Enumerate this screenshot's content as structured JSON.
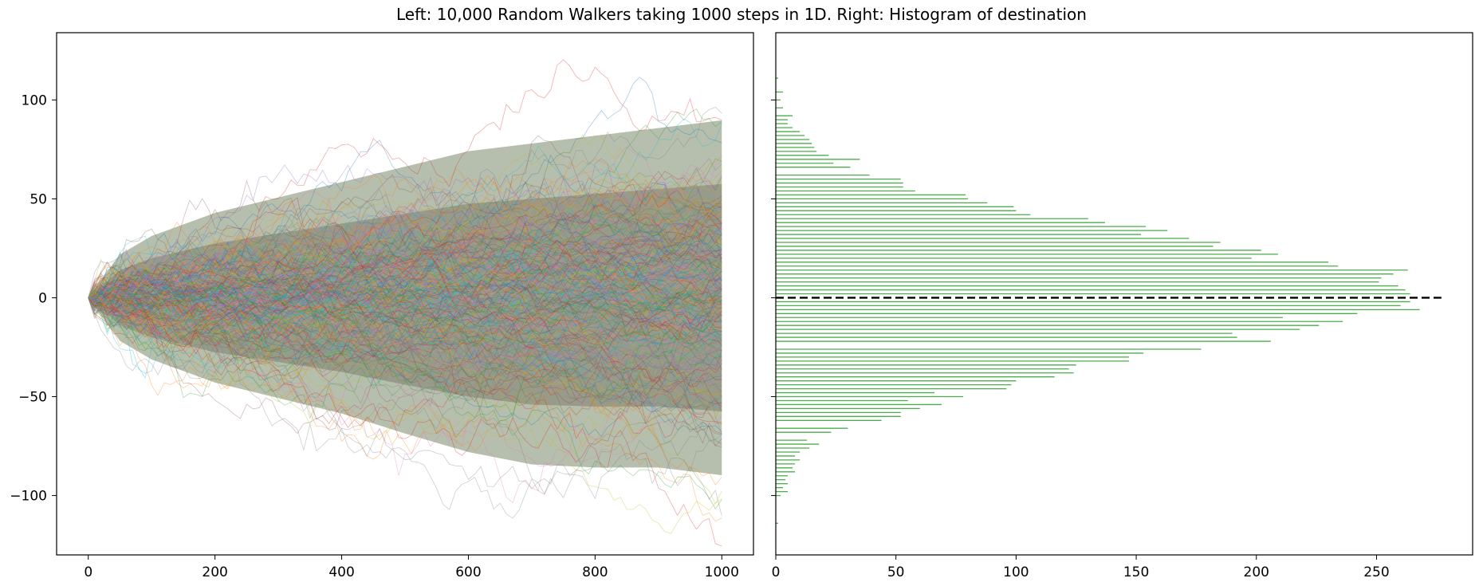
{
  "figure_title": "Left: 10,000 Random Walkers taking 1000 steps in 1D.  Right: Histogram of destination",
  "chart_data": [
    {
      "type": "line",
      "title": "",
      "xlabel": "",
      "ylabel": "",
      "description_series": "10,000 random walk trajectories",
      "steps": 1000,
      "walkers": 10000,
      "xlim": [
        -50,
        1050
      ],
      "ylim": [
        -130,
        134
      ],
      "x_ticks": [
        0,
        200,
        400,
        600,
        800,
        1000
      ],
      "y_ticks": [
        -100,
        -50,
        0,
        50,
        100
      ],
      "envelope": {
        "x": [
          0,
          50,
          100,
          200,
          300,
          400,
          500,
          600,
          700,
          800,
          900,
          1000
        ],
        "upper": [
          0,
          28,
          40,
          55,
          65,
          75,
          85,
          95,
          100,
          105,
          110,
          115
        ],
        "lower": [
          0,
          -28,
          -40,
          -55,
          -65,
          -75,
          -88,
          -100,
          -108,
          -110,
          -110,
          -115
        ]
      },
      "colors": [
        "#1f77b4",
        "#ff7f0e",
        "#2ca02c",
        "#d62728",
        "#9467bd",
        "#8c564b",
        "#e377c2",
        "#7f7f7f",
        "#bcbd22",
        "#17becf"
      ]
    },
    {
      "type": "bar",
      "orientation": "horizontal",
      "title": "",
      "xlabel": "",
      "ylabel": "",
      "xlim": [
        0,
        290
      ],
      "ylim": [
        -130,
        134
      ],
      "x_ticks": [
        0,
        50,
        100,
        150,
        200,
        250
      ],
      "y_ticks": [
        -100,
        -50,
        0,
        50,
        100
      ],
      "bar_color": "#2ca02c",
      "mean_line": {
        "y": 0,
        "x_end": 277,
        "color": "#000000",
        "style": "dashed"
      },
      "bins": [
        {
          "y": 111,
          "count": 1
        },
        {
          "y": 104,
          "count": 3
        },
        {
          "y": 100,
          "count": 2
        },
        {
          "y": 96,
          "count": 3
        },
        {
          "y": 92,
          "count": 7
        },
        {
          "y": 90,
          "count": 5
        },
        {
          "y": 88,
          "count": 5
        },
        {
          "y": 86,
          "count": 7
        },
        {
          "y": 84,
          "count": 10
        },
        {
          "y": 82,
          "count": 12
        },
        {
          "y": 80,
          "count": 14
        },
        {
          "y": 78,
          "count": 15
        },
        {
          "y": 76,
          "count": 16
        },
        {
          "y": 74,
          "count": 17
        },
        {
          "y": 72,
          "count": 22
        },
        {
          "y": 70,
          "count": 35
        },
        {
          "y": 68,
          "count": 24
        },
        {
          "y": 66,
          "count": 31
        },
        {
          "y": 62,
          "count": 39
        },
        {
          "y": 60,
          "count": 52
        },
        {
          "y": 58,
          "count": 53
        },
        {
          "y": 56,
          "count": 53
        },
        {
          "y": 54,
          "count": 58
        },
        {
          "y": 52,
          "count": 79
        },
        {
          "y": 50,
          "count": 80
        },
        {
          "y": 48,
          "count": 88
        },
        {
          "y": 46,
          "count": 99
        },
        {
          "y": 44,
          "count": 100
        },
        {
          "y": 42,
          "count": 106
        },
        {
          "y": 40,
          "count": 130
        },
        {
          "y": 38,
          "count": 137
        },
        {
          "y": 36,
          "count": 154
        },
        {
          "y": 34,
          "count": 163
        },
        {
          "y": 32,
          "count": 152
        },
        {
          "y": 30,
          "count": 172
        },
        {
          "y": 28,
          "count": 185
        },
        {
          "y": 26,
          "count": 182
        },
        {
          "y": 24,
          "count": 202
        },
        {
          "y": 22,
          "count": 209
        },
        {
          "y": 20,
          "count": 198
        },
        {
          "y": 18,
          "count": 230
        },
        {
          "y": 16,
          "count": 234
        },
        {
          "y": 14,
          "count": 263
        },
        {
          "y": 12,
          "count": 257
        },
        {
          "y": 10,
          "count": 252
        },
        {
          "y": 8,
          "count": 251
        },
        {
          "y": 6,
          "count": 259
        },
        {
          "y": 4,
          "count": 262
        },
        {
          "y": 2,
          "count": 264
        },
        {
          "y": -2,
          "count": 264
        },
        {
          "y": -4,
          "count": 260
        },
        {
          "y": -6,
          "count": 268
        },
        {
          "y": -8,
          "count": 242
        },
        {
          "y": -10,
          "count": 211
        },
        {
          "y": -12,
          "count": 236
        },
        {
          "y": -14,
          "count": 226
        },
        {
          "y": -16,
          "count": 218
        },
        {
          "y": -18,
          "count": 190
        },
        {
          "y": -20,
          "count": 192
        },
        {
          "y": -22,
          "count": 206
        },
        {
          "y": -26,
          "count": 177
        },
        {
          "y": -28,
          "count": 153
        },
        {
          "y": -30,
          "count": 147
        },
        {
          "y": -32,
          "count": 147
        },
        {
          "y": -34,
          "count": 125
        },
        {
          "y": -36,
          "count": 122
        },
        {
          "y": -38,
          "count": 124
        },
        {
          "y": -40,
          "count": 116
        },
        {
          "y": -42,
          "count": 100
        },
        {
          "y": -44,
          "count": 98
        },
        {
          "y": -46,
          "count": 96
        },
        {
          "y": -48,
          "count": 66
        },
        {
          "y": -50,
          "count": 78
        },
        {
          "y": -52,
          "count": 55
        },
        {
          "y": -54,
          "count": 69
        },
        {
          "y": -56,
          "count": 60
        },
        {
          "y": -58,
          "count": 52
        },
        {
          "y": -60,
          "count": 52
        },
        {
          "y": -62,
          "count": 44
        },
        {
          "y": -66,
          "count": 30
        },
        {
          "y": -68,
          "count": 23
        },
        {
          "y": -72,
          "count": 13
        },
        {
          "y": -74,
          "count": 18
        },
        {
          "y": -76,
          "count": 14
        },
        {
          "y": -78,
          "count": 10
        },
        {
          "y": -80,
          "count": 8
        },
        {
          "y": -82,
          "count": 10
        },
        {
          "y": -84,
          "count": 8
        },
        {
          "y": -86,
          "count": 7
        },
        {
          "y": -88,
          "count": 8
        },
        {
          "y": -90,
          "count": 5
        },
        {
          "y": -92,
          "count": 4
        },
        {
          "y": -94,
          "count": 5
        },
        {
          "y": -96,
          "count": 3
        },
        {
          "y": -98,
          "count": 5
        },
        {
          "y": -100,
          "count": 2
        },
        {
          "y": -114,
          "count": 1
        }
      ]
    }
  ]
}
